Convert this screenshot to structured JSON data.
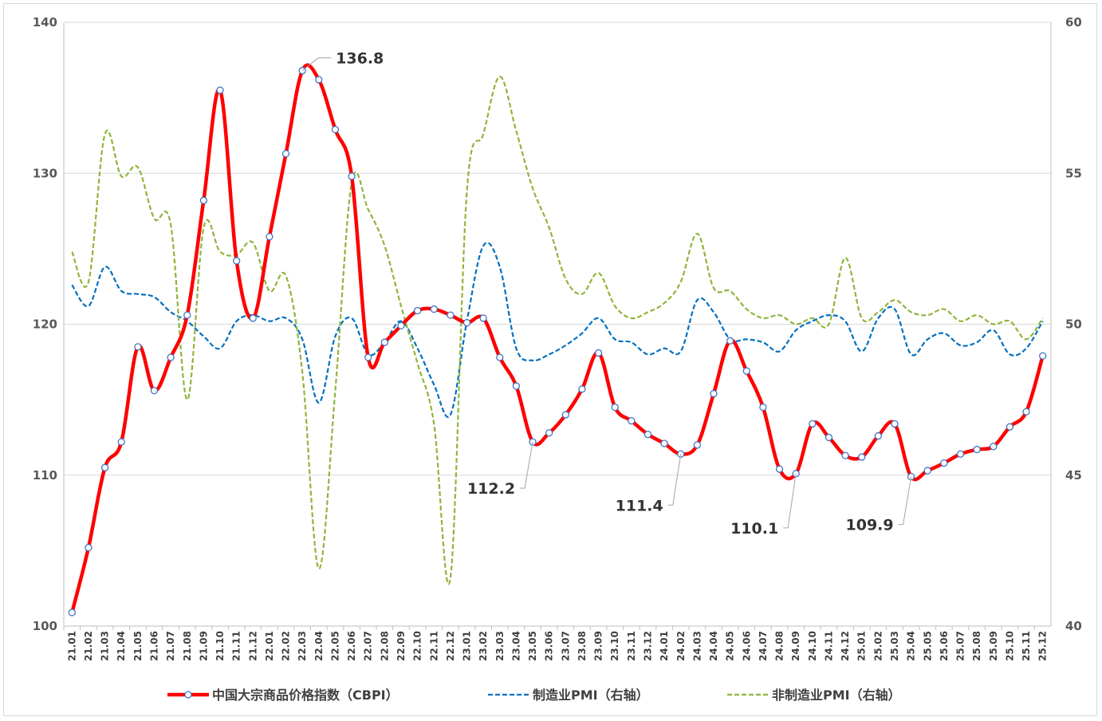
{
  "chart_data": {
    "type": "line",
    "title": "",
    "categories": [
      "21.01",
      "21.02",
      "21.03",
      "21.04",
      "21.05",
      "21.06",
      "21.07",
      "21.08",
      "21.09",
      "21.10",
      "21.11",
      "21.12",
      "22.01",
      "22.02",
      "22.03",
      "22.04",
      "22.05",
      "22.06",
      "22.07",
      "22.08",
      "22.09",
      "22.10",
      "22.11",
      "22.12",
      "23.01",
      "23.02",
      "23.03",
      "23.04",
      "23.05",
      "23.06",
      "23.07",
      "23.08",
      "23.09",
      "23.10",
      "23.11",
      "23.12",
      "24.01",
      "24.02",
      "24.03",
      "24.04",
      "24.05",
      "24.06",
      "24.07",
      "24.08",
      "24.09",
      "24.10",
      "24.11",
      "24.12",
      "25.01",
      "25.02",
      "25.03",
      "25.04",
      "25.05",
      "25.06",
      "25.07",
      "25.08",
      "25.09",
      "25.10",
      "25.11",
      "25.12"
    ],
    "x_tick_labels": [
      "21.01",
      "21.02",
      "21.03",
      "21.04",
      "21.05",
      "21.06",
      "21.07",
      "21.08",
      "21.09",
      "21.10",
      "21.11",
      "21.12",
      "22.01",
      "22.02",
      "22.03",
      "22.04",
      "22.05",
      "22.06",
      "22.07",
      "22.08",
      "22.09",
      "22.10",
      "22.11",
      "22.12",
      "23.01",
      "23.02",
      "23.03",
      "23.04",
      "23.05",
      "23.06",
      "23.07",
      "23.08",
      "23.09",
      "23.10",
      "23.11",
      "23.12",
      "24.01",
      "24.02",
      "24.03",
      "24.04",
      "24.05",
      "24.06",
      "24.07",
      "24.08",
      "24.09",
      "24.10",
      "24.11",
      "24.12",
      "25.01",
      "25.02",
      "25.03",
      "25.04",
      "25.05",
      "25.06",
      "25.07",
      "25.08",
      "25.09",
      "25.10",
      "25.11",
      "25.12"
    ],
    "y_left": {
      "min": 100,
      "max": 140,
      "ticks": [
        "100",
        "110",
        "120",
        "130",
        "140"
      ]
    },
    "y_right": {
      "min": 40,
      "max": 60,
      "ticks": [
        "40",
        "45",
        "50",
        "55",
        "60"
      ]
    },
    "series": [
      {
        "name": "中国大宗商品价格指数（CBPI）",
        "axis": "left",
        "color": "#ff0000",
        "style": "solid-markers",
        "values": [
          100.9,
          105.2,
          110.5,
          112.2,
          118.5,
          115.6,
          117.8,
          120.6,
          128.2,
          135.5,
          124.2,
          120.4,
          125.8,
          131.3,
          136.8,
          136.2,
          132.9,
          129.8,
          117.8,
          118.8,
          119.9,
          120.9,
          121.0,
          120.6,
          120.1,
          120.4,
          117.8,
          115.9,
          112.2,
          112.8,
          114.0,
          115.7,
          118.1,
          114.5,
          113.6,
          112.7,
          112.1,
          111.4,
          112.0,
          115.4,
          118.9,
          116.9,
          114.5,
          110.4,
          110.1,
          113.4,
          112.5,
          111.3,
          111.2,
          112.6,
          113.4,
          109.9,
          110.3,
          110.8,
          111.4,
          111.7,
          111.9,
          113.2,
          114.2,
          117.9
        ]
      },
      {
        "name": "制造业PMI（右轴）",
        "axis": "right",
        "color": "#0070c0",
        "style": "dashed",
        "values": [
          51.3,
          50.6,
          51.9,
          51.1,
          51.0,
          50.9,
          50.4,
          50.1,
          49.6,
          49.2,
          50.1,
          50.3,
          50.1,
          50.2,
          49.5,
          47.4,
          49.6,
          50.2,
          49.0,
          49.4,
          50.1,
          49.2,
          48.0,
          47.0,
          50.1,
          52.6,
          51.9,
          49.2,
          48.8,
          49.0,
          49.3,
          49.7,
          50.2,
          49.5,
          49.4,
          49.0,
          49.2,
          49.1,
          50.8,
          50.4,
          49.5,
          49.5,
          49.4,
          49.1,
          49.8,
          50.1,
          50.3,
          50.1,
          49.1,
          50.2,
          50.5,
          49.0,
          49.5,
          49.7,
          49.3,
          49.4,
          49.8,
          49.0,
          49.2,
          50.1
        ]
      },
      {
        "name": "非制造业PMI（右轴）",
        "axis": "right",
        "color": "#8fb53c",
        "style": "dashed",
        "values": [
          52.4,
          51.4,
          56.3,
          54.9,
          55.2,
          53.5,
          53.3,
          47.5,
          53.2,
          52.4,
          52.3,
          52.7,
          51.1,
          51.6,
          48.4,
          41.9,
          47.8,
          54.7,
          53.8,
          52.6,
          50.6,
          48.7,
          46.7,
          41.6,
          54.4,
          56.3,
          58.2,
          56.4,
          54.5,
          53.2,
          51.5,
          51.0,
          51.7,
          50.6,
          50.2,
          50.4,
          50.7,
          51.4,
          53.0,
          51.2,
          51.1,
          50.5,
          50.2,
          50.3,
          50.0,
          50.2,
          50.0,
          52.2,
          50.2,
          50.4,
          50.8,
          50.4,
          50.3,
          50.5,
          50.1,
          50.3,
          50.0,
          50.1,
          49.5,
          50.2
        ]
      }
    ],
    "annotations": [
      {
        "label": "136.8",
        "category": "22.03"
      },
      {
        "label": "112.2",
        "category": "23.05"
      },
      {
        "label": "111.4",
        "category": "24.02"
      },
      {
        "label": "110.1",
        "category": "24.09"
      },
      {
        "label": "109.9",
        "category": "25.04"
      }
    ],
    "legend_position": "bottom",
    "gridlines": true
  }
}
